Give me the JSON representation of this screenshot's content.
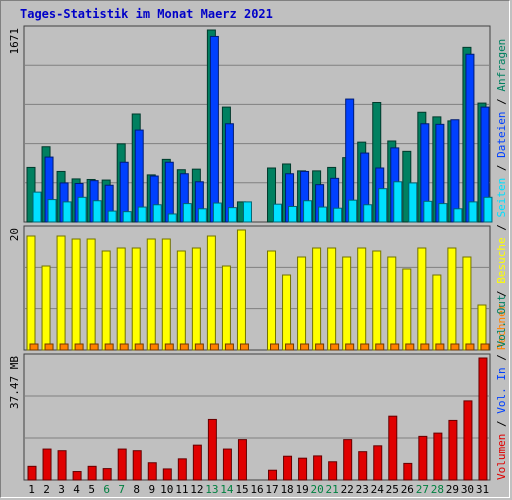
{
  "chart_data": {
    "type": "bar",
    "title": "Tages-Statistik im Monat Maerz 2021",
    "days": [
      "1",
      "2",
      "3",
      "4",
      "5",
      "6",
      "7",
      "8",
      "9",
      "10",
      "11",
      "12",
      "13",
      "14",
      "15",
      "16",
      "17",
      "18",
      "19",
      "20",
      "21",
      "22",
      "23",
      "24",
      "25",
      "26",
      "27",
      "28",
      "29",
      "30",
      "31"
    ],
    "weekend_days": [
      "6",
      "7",
      "13",
      "14",
      "20",
      "21",
      "27",
      "28"
    ],
    "day_colors": {
      "weekday": "#000000",
      "weekend": "#008040"
    },
    "panels": [
      {
        "id": "top",
        "ymax": 1671,
        "ymax_label": "1671",
        "series": [
          {
            "name": "Anfragen",
            "color": "#008060",
            "values": [
              475,
              655,
              440,
              375,
              370,
              365,
              680,
              940,
              410,
              545,
              455,
              460,
              1671,
              1000,
              175,
              0,
              470,
              505,
              445,
              445,
              475,
              560,
              695,
              1040,
              705,
              615,
              955,
              915,
              880,
              1520,
              1035
            ]
          },
          {
            "name": "Dateien",
            "color": "#0040ff",
            "values": [
              0,
              565,
              340,
              335,
              360,
              320,
              520,
              800,
              400,
              520,
              420,
              350,
              1615,
              855,
              0,
              0,
              0,
              420,
              440,
              325,
              380,
              1070,
              600,
              470,
              645,
              0,
              855,
              850,
              890,
              1460,
              1000
            ]
          },
          {
            "name": "Seiten",
            "color": "#00e0ff",
            "values": [
              260,
              195,
              175,
              215,
              185,
              95,
              90,
              130,
              150,
              70,
              160,
              115,
              165,
              125,
              175,
              0,
              155,
              135,
              185,
              130,
              120,
              190,
              150,
              290,
              350,
              340,
              180,
              160,
              115,
              175,
              215
            ]
          }
        ]
      },
      {
        "id": "middle",
        "ymax": 20,
        "ymax_label": "20",
        "series": [
          {
            "name": "Besuche",
            "color": "#ffff00",
            "values": [
              19,
              14,
              19,
              18.5,
              18.5,
              16.5,
              17,
              17,
              18.5,
              18.5,
              16.5,
              17,
              19,
              14,
              20,
              0,
              16.5,
              12.5,
              15.5,
              17,
              17,
              15.5,
              17,
              16.5,
              15.5,
              13.5,
              17,
              12.5,
              17,
              15.5,
              7.5
            ]
          },
          {
            "name": "Rechner",
            "color": "#ff8000",
            "values": [
              1,
              1,
              1,
              1,
              1,
              1,
              1,
              1,
              1,
              1,
              1,
              1,
              1,
              1,
              1,
              0,
              1,
              1,
              1,
              1,
              1,
              1,
              1,
              1,
              1,
              1,
              1,
              1,
              1,
              1,
              1
            ]
          }
        ]
      },
      {
        "id": "bottom",
        "ymax": 37.47,
        "ymax_label": "37.47 MB",
        "series": [
          {
            "name": "Volumen",
            "color": "#e00000",
            "values": [
              4.2,
              9.5,
              9,
              2.6,
              4.2,
              3.5,
              9.5,
              9,
              5.3,
              3.4,
              6.5,
              10.7,
              18.6,
              9.5,
              12.4,
              0,
              3.0,
              7.3,
              6.7,
              7.4,
              5.6,
              12.4,
              8.7,
              10.5,
              19.6,
              5.1,
              13.4,
              14.4,
              18.3,
              24.3,
              37.47
            ]
          }
        ]
      }
    ],
    "legend_right": [
      {
        "text": "Anfragen",
        "color": "#008060"
      },
      {
        "text": "Dateien",
        "color": "#0040ff"
      },
      {
        "text": "Seiten",
        "color": "#00e0ff"
      },
      {
        "text": "Besuche",
        "color": "#ffff00"
      },
      {
        "text": "Rechner",
        "color": "#ff8000"
      },
      {
        "text": "Vol. Out",
        "color": "#008060"
      },
      {
        "text": "Vol. In",
        "color": "#0040ff"
      },
      {
        "text": "Volumen",
        "color": "#e00000"
      }
    ],
    "legend_separator": " / ",
    "grid": true
  }
}
